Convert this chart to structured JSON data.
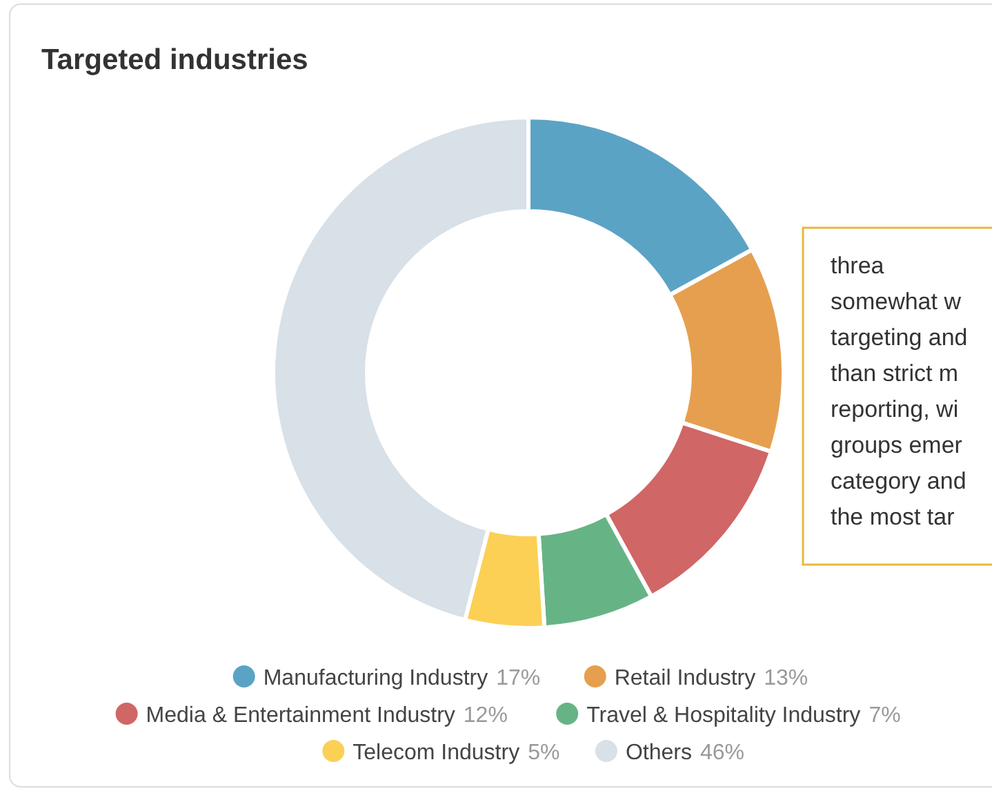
{
  "chart_data": {
    "type": "donut",
    "title": "Targeted industries",
    "categories": [
      "Manufacturing Industry",
      "Retail Industry",
      "Media & Entertainment Industry",
      "Travel & Hospitality Industry",
      "Telecom Industry",
      "Others"
    ],
    "values": [
      17,
      13,
      12,
      7,
      5,
      46
    ],
    "colors": [
      "#5ba3c5",
      "#e59f4f",
      "#d06666",
      "#66b486",
      "#fbd055",
      "#d8e0e8"
    ],
    "value_labels": [
      "17%",
      "13%",
      "12%",
      "7%",
      "5%",
      "46%"
    ],
    "legend": "bottom",
    "annotations": [
      "threa\nsomewhat w\ntargeting and\nthan strict m\nreporting, wi\ngroups emer\ncategory and\nthe most tar"
    ]
  }
}
